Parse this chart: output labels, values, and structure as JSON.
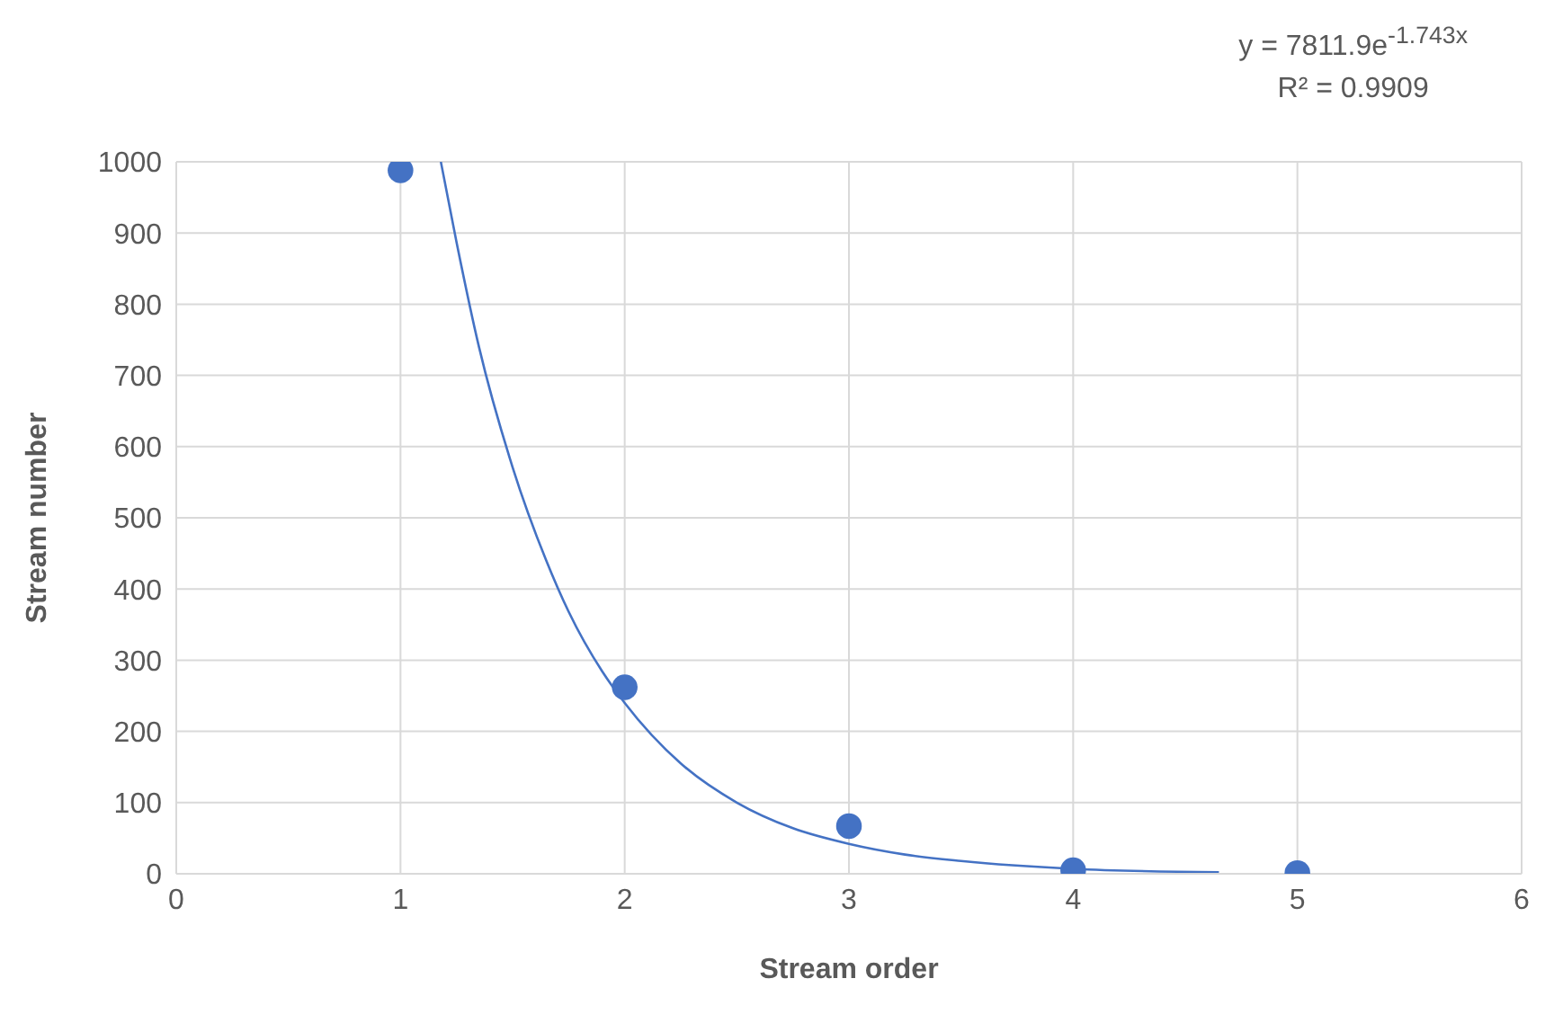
{
  "chart_data": {
    "type": "scatter",
    "xlabel": "Stream order",
    "ylabel": "Stream number",
    "annotations": [
      "y = 7811.9e$^{-1.743x}$",
      "R² = 0.9909"
    ],
    "xlim": [
      0,
      6
    ],
    "xticks": [
      0,
      1,
      2,
      3,
      4,
      5,
      6
    ],
    "ylim": [
      0,
      1000
    ],
    "yticks": [
      0,
      100,
      200,
      300,
      400,
      500,
      600,
      700,
      800,
      900,
      1000
    ],
    "grid": true,
    "legend": false,
    "series": [
      {
        "color": "#4472c4",
        "marker": "circle",
        "x": [
          1,
          2,
          3,
          4,
          5
        ],
        "values": [
          988,
          262,
          67,
          5,
          1
        ]
      },
      {
        "type": "line",
        "color": "#4472c4",
        "marker": "none",
        "line_style": "solid",
        "x": [
          1.18,
          1.25,
          1.35,
          1.5,
          1.65,
          1.75,
          1.9,
          2,
          2.25,
          2.5,
          2.75,
          3,
          3.25,
          3.5,
          4,
          4.65
        ],
        "values": [
          1000,
          887,
          740,
          571,
          440,
          368,
          284,
          240,
          155,
          100,
          64,
          42,
          27,
          18,
          7,
          2
        ]
      }
    ]
  }
}
